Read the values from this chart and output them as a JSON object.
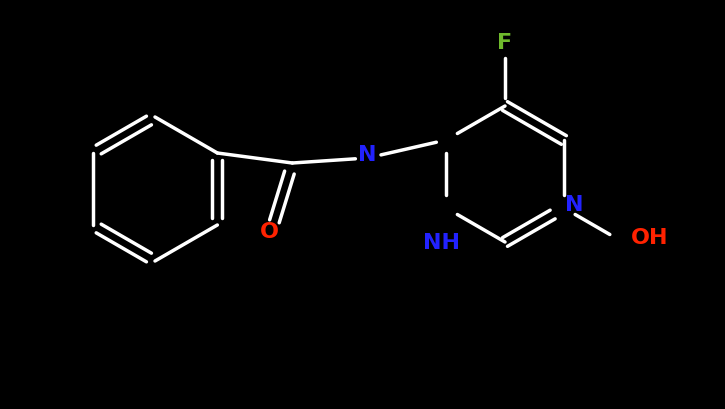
{
  "bg_color": "#000000",
  "bond_color": "#ffffff",
  "bond_width": 2.5,
  "atom_colors": {
    "N": "#2222ff",
    "O": "#ff2200",
    "F": "#6fba2c",
    "C": "#ffffff",
    "H": "#ffffff"
  },
  "font_size": 16,
  "figsize": [
    7.25,
    4.09
  ],
  "dpi": 100,
  "xlim": [
    0,
    7.25
  ],
  "ylim": [
    0,
    4.09
  ]
}
